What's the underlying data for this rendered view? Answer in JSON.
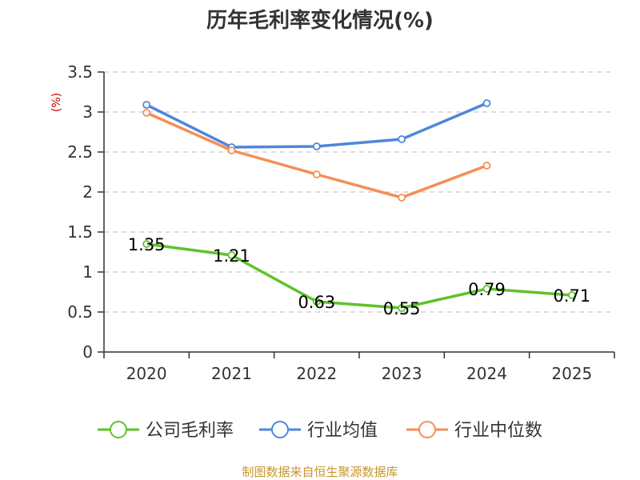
{
  "chart_data": {
    "type": "line",
    "title": "历年毛利率变化情况(%)",
    "xlabel": "",
    "ylabel": "(%)",
    "categories": [
      "2020",
      "2021",
      "2022",
      "2023",
      "2024",
      "2025"
    ],
    "ylim": [
      0,
      3.5
    ],
    "yticks": [
      "0",
      "0.5",
      "1",
      "1.5",
      "2",
      "2.5",
      "3",
      "3.5"
    ],
    "grid": true,
    "legend_position": "bottom",
    "series": [
      {
        "name": "公司毛利率",
        "color": "#5fc22a",
        "values": [
          1.35,
          1.21,
          0.63,
          0.55,
          0.79,
          0.71
        ],
        "labels": [
          "1.35",
          "1.21",
          "0.63",
          "0.55",
          "0.79",
          "0.71"
        ]
      },
      {
        "name": "行业均值",
        "color": "#4f86dc",
        "values": [
          3.09,
          2.56,
          2.57,
          2.66,
          3.11,
          null
        ]
      },
      {
        "name": "行业中位数",
        "color": "#f58e55",
        "values": [
          2.99,
          2.52,
          2.22,
          1.93,
          2.33,
          null
        ]
      }
    ]
  },
  "footer": {
    "source": "制图数据来自恒生聚源数据库"
  }
}
